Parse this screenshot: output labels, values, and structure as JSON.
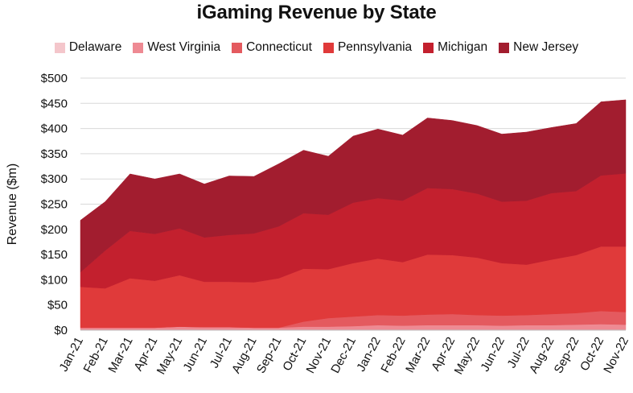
{
  "chart_data": {
    "type": "area",
    "stacked": true,
    "title": "iGaming Revenue by State",
    "xlabel": "",
    "ylabel": "Revenue ($m)",
    "ylim": [
      0,
      500
    ],
    "yticks": [
      "$0",
      "$50",
      "$100",
      "$150",
      "$200",
      "$250",
      "$300",
      "$350",
      "$400",
      "$450",
      "$500"
    ],
    "ytick_values": [
      0,
      50,
      100,
      150,
      200,
      250,
      300,
      350,
      400,
      450,
      500
    ],
    "grid": true,
    "legend_position": "top",
    "categories": [
      "Jan-21",
      "Feb-21",
      "Mar-21",
      "Apr-21",
      "May-21",
      "Jun-21",
      "Jul-21",
      "Aug-21",
      "Sep-21",
      "Oct-21",
      "Nov-21",
      "Dec-21",
      "Jan-22",
      "Feb-22",
      "Mar-22",
      "Apr-22",
      "May-22",
      "Jun-22",
      "Jul-22",
      "Aug-22",
      "Sep-22",
      "Oct-22",
      "Nov-22"
    ],
    "series": [
      {
        "name": "Delaware",
        "color": "#f4c6cb",
        "values": [
          1,
          1,
          1,
          1,
          1,
          1,
          1,
          1,
          1,
          1,
          1,
          1,
          1,
          1,
          1,
          1,
          1,
          1,
          1,
          1,
          1,
          1,
          1
        ]
      },
      {
        "name": "West Virginia",
        "color": "#ee8a93",
        "values": [
          4,
          4,
          4,
          4,
          6,
          5,
          5,
          4,
          4,
          6,
          6,
          7,
          9,
          8,
          9,
          9,
          9,
          8,
          9,
          9,
          10,
          11,
          10
        ]
      },
      {
        "name": "Connecticut",
        "color": "#e45a5f",
        "values": [
          0,
          0,
          0,
          0,
          0,
          0,
          0,
          0,
          0,
          10,
          17,
          19,
          20,
          20,
          21,
          22,
          20,
          20,
          20,
          22,
          23,
          26,
          25
        ]
      },
      {
        "name": "Pennsylvania",
        "color": "#e03a3a",
        "values": [
          81,
          78,
          98,
          93,
          102,
          90,
          90,
          90,
          98,
          105,
          97,
          106,
          112,
          106,
          119,
          117,
          114,
          104,
          100,
          108,
          115,
          128,
          130
        ]
      },
      {
        "name": "Michigan",
        "color": "#c3202e",
        "values": [
          29,
          75,
          94,
          93,
          93,
          88,
          93,
          97,
          103,
          110,
          108,
          120,
          120,
          122,
          132,
          131,
          127,
          122,
          127,
          132,
          127,
          141,
          145
        ]
      },
      {
        "name": "New Jersey",
        "color": "#a21d2f",
        "values": [
          103,
          97,
          113,
          109,
          108,
          106,
          117,
          113,
          124,
          125,
          116,
          132,
          137,
          130,
          139,
          136,
          135,
          134,
          136,
          130,
          134,
          146,
          146
        ]
      }
    ]
  }
}
